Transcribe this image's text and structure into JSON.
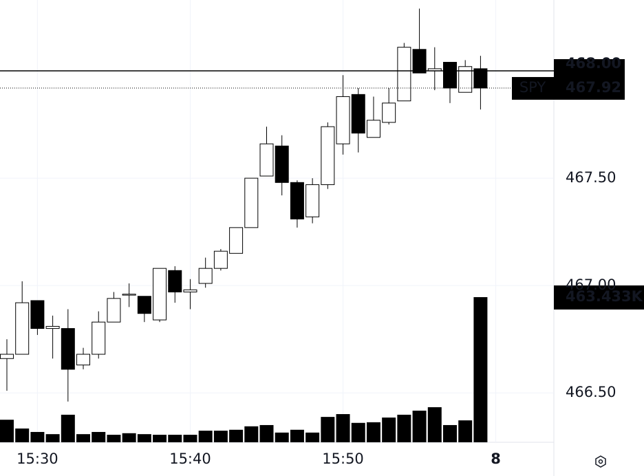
{
  "chart_data": {
    "type": "candlestick",
    "symbol": "SPY",
    "open": [
      466.66,
      466.68,
      466.93,
      466.8,
      466.8,
      466.63,
      466.68,
      466.83,
      466.96,
      466.95,
      466.84,
      467.07,
      466.97,
      467.01,
      467.08,
      467.15,
      467.27,
      467.51,
      467.65,
      467.48,
      467.32,
      467.47,
      467.66,
      467.89,
      467.69,
      467.76,
      467.86,
      468.1,
      468.0,
      468.04,
      467.9,
      468.01
    ],
    "high": [
      466.75,
      467.02,
      466.93,
      466.86,
      466.89,
      466.71,
      466.88,
      466.97,
      467.01,
      466.95,
      467.08,
      467.09,
      467.03,
      467.13,
      467.17,
      467.27,
      467.5,
      467.74,
      467.7,
      467.49,
      467.5,
      467.76,
      467.98,
      467.92,
      467.88,
      467.92,
      468.13,
      468.29,
      468.11,
      468.04,
      468.05,
      468.07
    ],
    "low": [
      466.51,
      466.68,
      466.77,
      466.66,
      466.46,
      466.61,
      466.66,
      466.83,
      466.9,
      466.83,
      466.83,
      466.92,
      466.89,
      466.99,
      467.07,
      467.15,
      467.27,
      467.51,
      467.42,
      467.27,
      467.29,
      467.45,
      467.61,
      467.62,
      467.69,
      467.75,
      467.86,
      467.99,
      467.91,
      467.85,
      467.9,
      467.82
    ],
    "close": [
      466.68,
      466.92,
      466.8,
      466.81,
      466.61,
      466.68,
      466.83,
      466.94,
      466.96,
      466.87,
      467.08,
      466.97,
      466.98,
      467.08,
      467.16,
      467.27,
      467.5,
      467.66,
      467.48,
      467.31,
      467.47,
      467.74,
      467.88,
      467.71,
      467.77,
      467.85,
      468.11,
      467.99,
      468.01,
      467.92,
      468.02,
      467.92
    ],
    "volume": [
      72000,
      44000,
      33000,
      26000,
      88000,
      26000,
      33000,
      24000,
      29000,
      26000,
      24000,
      24000,
      24000,
      37000,
      37000,
      40000,
      51000,
      55000,
      31000,
      40000,
      31000,
      81000,
      90000,
      62000,
      64000,
      79000,
      88000,
      101000,
      112000,
      55000,
      70000,
      463433
    ],
    "volume_label": "463.433K",
    "vlim": [
      0,
      1412000
    ],
    "ylim": [
      466.27,
      468.33
    ],
    "yticks": [
      {
        "value": 466.5,
        "label": "466.50"
      },
      {
        "value": 467,
        "label": "467.00"
      },
      {
        "value": 467.5,
        "label": "467.50"
      }
    ],
    "xlim": [
      -0.45,
      35.8
    ],
    "xticks": [
      {
        "value": 2,
        "label": "15:30"
      },
      {
        "value": 12,
        "label": "15:40"
      },
      {
        "value": 22,
        "label": "15:50"
      },
      {
        "value": 32,
        "label": "8"
      }
    ],
    "price_line": {
      "value": 468,
      "label": "468.00"
    },
    "last_price": {
      "value": 467.92,
      "label": "467.92"
    },
    "up_color": "#ffffff",
    "down_color": "#000000",
    "grid": true
  }
}
